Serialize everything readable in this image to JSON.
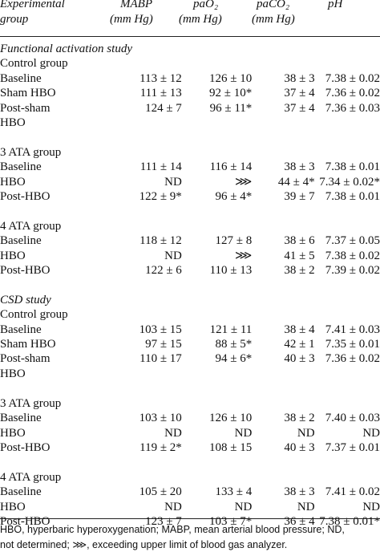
{
  "header": {
    "col0": [
      "Experimental",
      "group"
    ],
    "col1": [
      "MABP",
      "(mm Hg)"
    ],
    "col2": [
      "paO₂",
      "(mm Hg)"
    ],
    "col3": [
      "paCO₂",
      "(mm Hg)"
    ],
    "col4": [
      "pH"
    ]
  },
  "rows": [
    {
      "label": "Functional activation study",
      "kind": "section",
      "indent": 0,
      "values": [
        "",
        "",
        "",
        ""
      ]
    },
    {
      "label": "Control group",
      "kind": "group",
      "indent": 1,
      "values": [
        "",
        "",
        "",
        ""
      ]
    },
    {
      "label": "Baseline",
      "kind": "data",
      "indent": 2,
      "values": [
        "113 ± 12",
        "126 ± 10",
        "38 ± 3",
        "7.38 ± 0.02"
      ]
    },
    {
      "label": "Sham HBO",
      "kind": "data",
      "indent": 2,
      "values": [
        "111 ± 13",
        "92 ± 10*",
        "37 ± 4",
        "7.36 ± 0.02"
      ]
    },
    {
      "label": "Post-sham",
      "kind": "data",
      "indent": 2,
      "values": [
        "124 ± 7",
        "96 ± 11*",
        "37 ± 4",
        "7.36 ± 0.03"
      ]
    },
    {
      "label": "HBO",
      "kind": "data",
      "indent": 2,
      "values": [
        "",
        "",
        "",
        ""
      ]
    },
    {
      "label": "",
      "kind": "blank",
      "indent": 0,
      "values": [
        "",
        "",
        "",
        ""
      ]
    },
    {
      "label": "3 ATA group",
      "kind": "group",
      "indent": 1,
      "values": [
        "",
        "",
        "",
        ""
      ]
    },
    {
      "label": "Baseline",
      "kind": "data",
      "indent": 2,
      "values": [
        "111 ± 14",
        "116 ± 14",
        "38 ± 3",
        "7.38 ± 0.01"
      ]
    },
    {
      "label": "HBO",
      "kind": "data",
      "indent": 2,
      "values": [
        "ND",
        "⋙",
        "44 ± 4*",
        "7.34 ± 0.02*"
      ]
    },
    {
      "label": "Post-HBO",
      "kind": "data",
      "indent": 2,
      "values": [
        "122 ± 9*",
        "96 ± 4*",
        "39 ± 7",
        "7.38 ± 0.01"
      ]
    },
    {
      "label": "",
      "kind": "blank",
      "indent": 0,
      "values": [
        "",
        "",
        "",
        ""
      ]
    },
    {
      "label": "4 ATA group",
      "kind": "group",
      "indent": 1,
      "values": [
        "",
        "",
        "",
        ""
      ]
    },
    {
      "label": "Baseline",
      "kind": "data",
      "indent": 2,
      "values": [
        "118 ± 12",
        "127 ± 8",
        "38 ± 6",
        "7.37 ± 0.05"
      ]
    },
    {
      "label": "HBO",
      "kind": "data",
      "indent": 2,
      "values": [
        "ND",
        "⋙",
        "41 ± 5",
        "7.38 ± 0.02"
      ]
    },
    {
      "label": "Post-HBO",
      "kind": "data",
      "indent": 2,
      "values": [
        "122 ± 6",
        "110 ± 13",
        "38 ± 2",
        "7.39 ± 0.02"
      ]
    },
    {
      "label": "",
      "kind": "blank",
      "indent": 0,
      "values": [
        "",
        "",
        "",
        ""
      ]
    },
    {
      "label": "CSD study",
      "kind": "section",
      "indent": 0,
      "values": [
        "",
        "",
        "",
        ""
      ]
    },
    {
      "label": "Control group",
      "kind": "group",
      "indent": 1,
      "values": [
        "",
        "",
        "",
        ""
      ]
    },
    {
      "label": "Baseline",
      "kind": "data",
      "indent": 2,
      "values": [
        "103 ± 15",
        "121 ± 11",
        "38 ± 4",
        "7.41 ± 0.03"
      ]
    },
    {
      "label": "Sham HBO",
      "kind": "data",
      "indent": 2,
      "values": [
        "97 ± 15",
        "88 ± 5*",
        "42 ± 1",
        "7.35 ± 0.01"
      ]
    },
    {
      "label": "Post-sham",
      "kind": "data",
      "indent": 2,
      "values": [
        "110 ± 17",
        "94 ± 6*",
        "40 ± 3",
        "7.36 ± 0.02"
      ]
    },
    {
      "label": "HBO",
      "kind": "data",
      "indent": 2,
      "values": [
        "",
        "",
        "",
        ""
      ]
    },
    {
      "label": "",
      "kind": "blank",
      "indent": 0,
      "values": [
        "",
        "",
        "",
        ""
      ]
    },
    {
      "label": "3 ATA group",
      "kind": "group",
      "indent": 1,
      "values": [
        "",
        "",
        "",
        ""
      ]
    },
    {
      "label": "Baseline",
      "kind": "data",
      "indent": 2,
      "values": [
        "103 ± 10",
        "126 ± 10",
        "38 ± 2",
        "7.40 ± 0.03"
      ]
    },
    {
      "label": "HBO",
      "kind": "data",
      "indent": 2,
      "values": [
        "ND",
        "ND",
        "ND",
        "ND"
      ]
    },
    {
      "label": "Post-HBO",
      "kind": "data",
      "indent": 2,
      "values": [
        "119 ± 2*",
        "108 ± 15",
        "40 ± 3",
        "7.37 ± 0.01"
      ]
    },
    {
      "label": "",
      "kind": "blank",
      "indent": 0,
      "values": [
        "",
        "",
        "",
        ""
      ]
    },
    {
      "label": "4 ATA group",
      "kind": "group",
      "indent": 1,
      "values": [
        "",
        "",
        "",
        ""
      ]
    },
    {
      "label": "Baseline",
      "kind": "data",
      "indent": 2,
      "values": [
        "105 ± 20",
        "133 ± 4",
        "38 ± 3",
        "7.41 ± 0.02"
      ]
    },
    {
      "label": "HBO",
      "kind": "data",
      "indent": 2,
      "values": [
        "ND",
        "ND",
        "ND",
        "ND"
      ]
    },
    {
      "label": "Post-HBO",
      "kind": "data",
      "indent": 2,
      "values": [
        "123 ± 7",
        "103 ± 7*",
        "36 ± 4",
        "7.38 ± 0.01*"
      ]
    }
  ],
  "footnote": [
    "HBO, hyperbaric hyperoxygenation; MABP, mean arterial blood pressure; ND,",
    "not determined; ⋙, exceeding upper limit of blood gas analyzer."
  ]
}
